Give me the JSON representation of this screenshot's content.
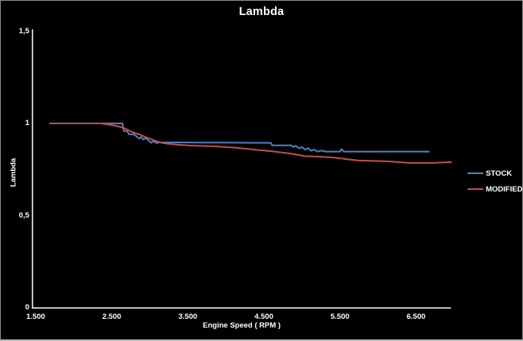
{
  "chart_data": {
    "type": "line",
    "title": "Lambda",
    "xlabel": "Engine Speed ( RPM )",
    "ylabel": "Lambda",
    "xlim": [
      1500,
      6958
    ],
    "ylim": [
      0,
      1.5
    ],
    "grid": false,
    "legend_position": "right",
    "background_color": "#000000",
    "axis_color": "#ffffff",
    "text_color": "#ffffff",
    "xticks": [
      {
        "label": "1.500",
        "value": 1500
      },
      {
        "label": "2.500",
        "value": 2500
      },
      {
        "label": "3.500",
        "value": 3500
      },
      {
        "label": "4.500",
        "value": 4500
      },
      {
        "label": "5.500",
        "value": 5500
      },
      {
        "label": "6.500",
        "value": 6500
      }
    ],
    "yticks": [
      {
        "label": "1,5",
        "value": 1.5
      },
      {
        "label": "1",
        "value": 1.0
      },
      {
        "label": "0,5",
        "value": 0.5
      },
      {
        "label": "0",
        "value": 0.0
      }
    ],
    "series": [
      {
        "name": "STOCK",
        "color": "#4F81BD",
        "points": [
          [
            1690,
            1.0
          ],
          [
            2360,
            1.0
          ],
          [
            2600,
            1.0
          ],
          [
            2640,
            1.0
          ],
          [
            2660,
            0.958
          ],
          [
            2705,
            0.958
          ],
          [
            2725,
            0.941
          ],
          [
            2790,
            0.941
          ],
          [
            2830,
            0.928
          ],
          [
            2860,
            0.918
          ],
          [
            2885,
            0.926
          ],
          [
            2915,
            0.913
          ],
          [
            2945,
            0.921
          ],
          [
            2980,
            0.909
          ],
          [
            3020,
            0.895
          ],
          [
            3050,
            0.905
          ],
          [
            3085,
            0.893
          ],
          [
            3125,
            0.897
          ],
          [
            3400,
            0.897
          ],
          [
            3700,
            0.896
          ],
          [
            4000,
            0.896
          ],
          [
            4300,
            0.895
          ],
          [
            4590,
            0.895
          ],
          [
            4610,
            0.881
          ],
          [
            4860,
            0.881
          ],
          [
            4890,
            0.872
          ],
          [
            4920,
            0.879
          ],
          [
            4960,
            0.865
          ],
          [
            5000,
            0.872
          ],
          [
            5040,
            0.858
          ],
          [
            5080,
            0.866
          ],
          [
            5120,
            0.852
          ],
          [
            5160,
            0.858
          ],
          [
            5200,
            0.847
          ],
          [
            5260,
            0.853
          ],
          [
            5310,
            0.847
          ],
          [
            5400,
            0.847
          ],
          [
            5500,
            0.847
          ],
          [
            5520,
            0.861
          ],
          [
            5550,
            0.847
          ],
          [
            5700,
            0.847
          ],
          [
            6000,
            0.847
          ],
          [
            6300,
            0.847
          ],
          [
            6670,
            0.847
          ]
        ]
      },
      {
        "name": "MODIFIED",
        "color": "#C0504D",
        "points": [
          [
            1690,
            1.0
          ],
          [
            2365,
            1.0
          ],
          [
            2500,
            0.991
          ],
          [
            2600,
            0.983
          ],
          [
            2690,
            0.97
          ],
          [
            2770,
            0.953
          ],
          [
            2865,
            0.94
          ],
          [
            2970,
            0.922
          ],
          [
            3075,
            0.905
          ],
          [
            3175,
            0.893
          ],
          [
            3280,
            0.888
          ],
          [
            3385,
            0.884
          ],
          [
            3540,
            0.88
          ],
          [
            3855,
            0.876
          ],
          [
            4165,
            0.867
          ],
          [
            4375,
            0.858
          ],
          [
            4585,
            0.85
          ],
          [
            4845,
            0.837
          ],
          [
            5050,
            0.822
          ],
          [
            5210,
            0.82
          ],
          [
            5415,
            0.815
          ],
          [
            5575,
            0.807
          ],
          [
            5730,
            0.799
          ],
          [
            6145,
            0.794
          ],
          [
            6405,
            0.786
          ],
          [
            6720,
            0.786
          ],
          [
            6960,
            0.79
          ]
        ]
      }
    ]
  }
}
